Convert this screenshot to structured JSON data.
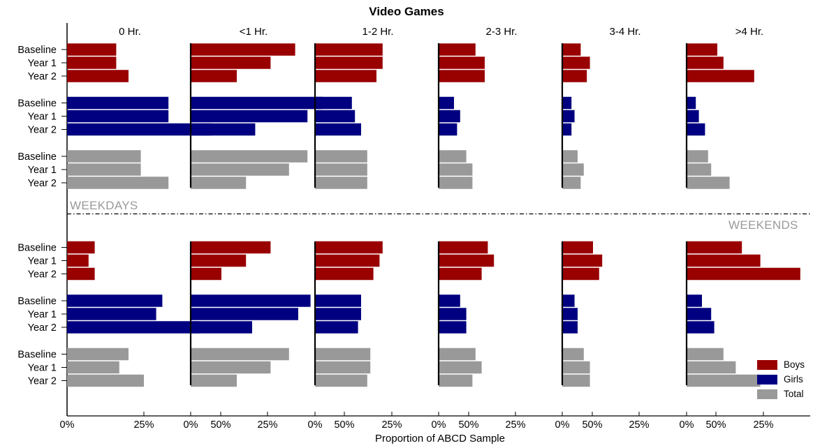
{
  "chart_data": {
    "type": "bar",
    "title": "Video Games",
    "xlabel": "Proportion of ABCD Sample",
    "panels": [
      "0 Hr.",
      "<1 Hr.",
      "1-2 Hr.",
      "2-3 Hr.",
      "3-4 Hr.",
      ">4 Hr."
    ],
    "sections": [
      "WEEKDAYS",
      "WEEKENDS"
    ],
    "groups": [
      "Boys",
      "Girls",
      "Total"
    ],
    "categories": [
      "Baseline",
      "Year 1",
      "Year 2"
    ],
    "xlim": [
      0,
      0.5
    ],
    "xticks": [
      0,
      0.25,
      0.5
    ],
    "xtick_labels": [
      "0%",
      "25%",
      "50%"
    ],
    "colors": {
      "Boys": "#990000",
      "Girls": "#000080",
      "Total": "#999999"
    },
    "legend": {
      "position": "bottom-right",
      "entries": [
        "Boys",
        "Girls",
        "Total"
      ]
    },
    "data": {
      "WEEKDAYS": {
        "Boys": [
          [
            0.16,
            0.16,
            0.2
          ],
          [
            0.34,
            0.26,
            0.15
          ],
          [
            0.22,
            0.22,
            0.2
          ],
          [
            0.12,
            0.15,
            0.15
          ],
          [
            0.06,
            0.09,
            0.08
          ],
          [
            0.1,
            0.12,
            0.22
          ]
        ],
        "Girls": [
          [
            0.33,
            0.33,
            0.47
          ],
          [
            0.43,
            0.38,
            0.21
          ],
          [
            0.12,
            0.13,
            0.15
          ],
          [
            0.05,
            0.07,
            0.06
          ],
          [
            0.03,
            0.04,
            0.03
          ],
          [
            0.03,
            0.04,
            0.06
          ]
        ],
        "Total": [
          [
            0.24,
            0.24,
            0.33
          ],
          [
            0.38,
            0.32,
            0.18
          ],
          [
            0.17,
            0.17,
            0.17
          ],
          [
            0.09,
            0.11,
            0.11
          ],
          [
            0.05,
            0.07,
            0.06
          ],
          [
            0.07,
            0.08,
            0.14
          ]
        ]
      },
      "WEEKENDS": {
        "Boys": [
          [
            0.09,
            0.07,
            0.09
          ],
          [
            0.26,
            0.18,
            0.1
          ],
          [
            0.22,
            0.21,
            0.19
          ],
          [
            0.16,
            0.18,
            0.14
          ],
          [
            0.1,
            0.13,
            0.12
          ],
          [
            0.18,
            0.24,
            0.37
          ]
        ],
        "Girls": [
          [
            0.31,
            0.29,
            0.43
          ],
          [
            0.39,
            0.35,
            0.2
          ],
          [
            0.15,
            0.15,
            0.14
          ],
          [
            0.07,
            0.09,
            0.09
          ],
          [
            0.04,
            0.05,
            0.05
          ],
          [
            0.05,
            0.08,
            0.09
          ]
        ],
        "Total": [
          [
            0.2,
            0.17,
            0.25
          ],
          [
            0.32,
            0.26,
            0.15
          ],
          [
            0.18,
            0.18,
            0.17
          ],
          [
            0.12,
            0.14,
            0.11
          ],
          [
            0.07,
            0.09,
            0.09
          ],
          [
            0.12,
            0.16,
            0.24
          ]
        ]
      }
    }
  }
}
